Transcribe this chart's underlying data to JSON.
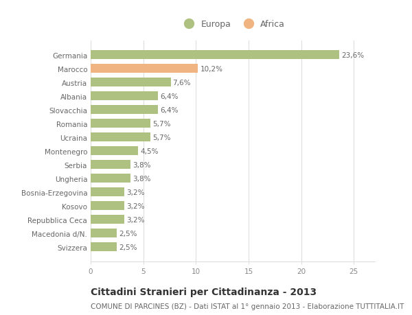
{
  "categories": [
    "Germania",
    "Marocco",
    "Austria",
    "Albania",
    "Slovacchia",
    "Romania",
    "Ucraina",
    "Montenegro",
    "Serbia",
    "Ungheria",
    "Bosnia-Erzegovina",
    "Kosovo",
    "Repubblica Ceca",
    "Macedonia d/N.",
    "Svizzera"
  ],
  "values": [
    23.6,
    10.2,
    7.6,
    6.4,
    6.4,
    5.7,
    5.7,
    4.5,
    3.8,
    3.8,
    3.2,
    3.2,
    3.2,
    2.5,
    2.5
  ],
  "labels": [
    "23,6%",
    "10,2%",
    "7,6%",
    "6,4%",
    "6,4%",
    "5,7%",
    "5,7%",
    "4,5%",
    "3,8%",
    "3,8%",
    "3,2%",
    "3,2%",
    "3,2%",
    "2,5%",
    "2,5%"
  ],
  "colors": [
    "#aec180",
    "#f0b482",
    "#aec180",
    "#aec180",
    "#aec180",
    "#aec180",
    "#aec180",
    "#aec180",
    "#aec180",
    "#aec180",
    "#aec180",
    "#aec180",
    "#aec180",
    "#aec180",
    "#aec180"
  ],
  "europa_color": "#aec180",
  "africa_color": "#f0b482",
  "xlim": [
    0,
    27
  ],
  "xticks": [
    0,
    5,
    10,
    15,
    20,
    25
  ],
  "title": "Cittadini Stranieri per Cittadinanza - 2013",
  "subtitle": "COMUNE DI PARCINES (BZ) - Dati ISTAT al 1° gennaio 2013 - Elaborazione TUTTITALIA.IT",
  "title_fontsize": 10,
  "subtitle_fontsize": 7.5,
  "bar_height": 0.65,
  "background_color": "#ffffff",
  "grid_color": "#dddddd",
  "label_fontsize": 7.5,
  "tick_fontsize": 7.5,
  "ytick_fontsize": 7.5,
  "legend_fontsize": 9
}
